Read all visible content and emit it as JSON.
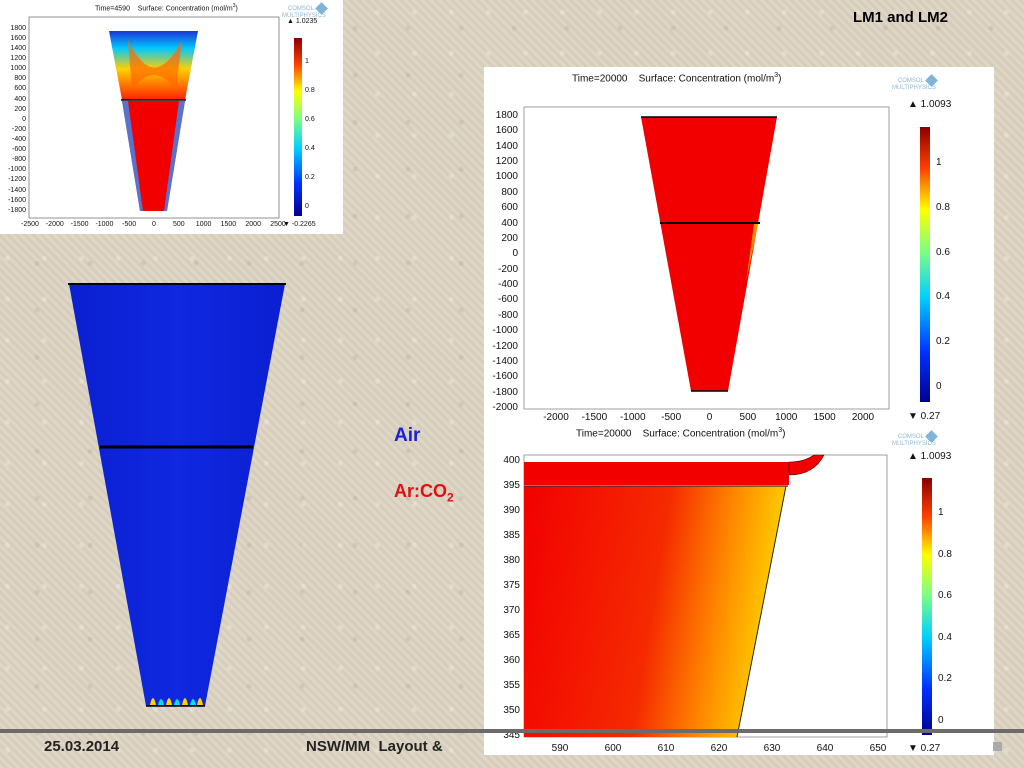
{
  "slide": {
    "title": "LM1 and LM2",
    "legend_air": "Air",
    "legend_ar_main": "Ar:CO",
    "legend_ar_sub": "2",
    "footer_date": "25.03.2014",
    "footer_center": "NSW/MM  Layout &"
  },
  "colors": {
    "air": "#1a22d6",
    "arco2": "#e01010",
    "sim_red": "#f20000",
    "sim_blue": "#0a1fd0"
  },
  "plot_small": {
    "time_label": "Time=4590",
    "surface_label": "Surface: Concentration (mol/m",
    "surface_sup": "3",
    "surface_close": ")",
    "colorbar_max": "▲ 1.0235",
    "colorbar_min": "▼ -0.2265",
    "colorbar_ticks": [
      "1",
      "0.8",
      "0.6",
      "0.4",
      "0.2",
      "0"
    ],
    "y_ticks": [
      "1800",
      "1600",
      "1400",
      "1200",
      "1000",
      "800",
      "600",
      "400",
      "200",
      "0",
      "-200",
      "-400",
      "-600",
      "-800",
      "-1000",
      "-1200",
      "-1400",
      "-1600",
      "-1800"
    ],
    "x_ticks": [
      "-2500",
      "-2000",
      "-1500",
      "-1000",
      "-500",
      "0",
      "500",
      "1000",
      "1500",
      "2000",
      "2500"
    ]
  },
  "plot_big": {
    "time_label": "Time=20000",
    "surface_label": "Surface: Concentration (mol/m",
    "surface_sup": "3",
    "surface_close": ")",
    "colorbar_max": "▲ 1.0093",
    "colorbar_min": "▼ 0.27",
    "colorbar_ticks": [
      "1",
      "0.8",
      "0.6",
      "0.4",
      "0.2",
      "0"
    ],
    "y_ticks": [
      "1800",
      "1600",
      "1400",
      "1200",
      "1000",
      "800",
      "600",
      "400",
      "200",
      "0",
      "-200",
      "-400",
      "-600",
      "-800",
      "-1000",
      "-1200",
      "-1400",
      "-1600",
      "-1800",
      "-2000"
    ],
    "x_ticks": [
      "-2000",
      "-1500",
      "-1000",
      "-500",
      "0",
      "500",
      "1000",
      "1500",
      "2000"
    ]
  },
  "plot_zoom": {
    "time_label": "Time=20000",
    "surface_label": "Surface: Concentration (mol/m",
    "surface_sup": "3",
    "surface_close": ")",
    "colorbar_max": "▲ 1.0093",
    "colorbar_min": "▼ 0.27",
    "colorbar_ticks": [
      "1",
      "0.8",
      "0.6",
      "0.4",
      "0.2",
      "0"
    ],
    "y_ticks": [
      "400",
      "395",
      "390",
      "385",
      "380",
      "375",
      "370",
      "365",
      "360",
      "355",
      "350",
      "345"
    ],
    "x_ticks": [
      "590",
      "600",
      "610",
      "620",
      "630",
      "640",
      "650"
    ]
  },
  "logo": {
    "line1": "COMSOL",
    "line2": "MULTIPHYSICS"
  }
}
